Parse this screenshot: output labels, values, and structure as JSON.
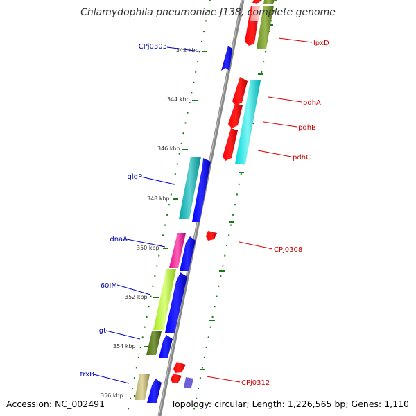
{
  "title": "Chlamydophila pneumoniae J138, complete genome",
  "footer": {
    "accession": "Accession: NC_002491",
    "summary": "Topology: circular; Length: 1,226,565 bp; Genes: 1,110"
  },
  "colors": {
    "backbone": "#808080",
    "forward_label": "#0000aa",
    "reverse_label": "#cc0000",
    "tick": "#1a7a1a"
  },
  "kbp_labels": [
    "342 kbp",
    "344 kbp",
    "346 kbp",
    "348 kbp",
    "350 kbp",
    "352 kbp",
    "354 kbp",
    "356 kbp"
  ],
  "left_labels": [
    "CPj0303",
    "glgP",
    "dnaA",
    "60IM",
    "lgt",
    "trxB"
  ],
  "right_labels": [
    "lpxD",
    "pdhA",
    "pdhB",
    "pdhC",
    "CPj0308",
    "CPj0312"
  ]
}
